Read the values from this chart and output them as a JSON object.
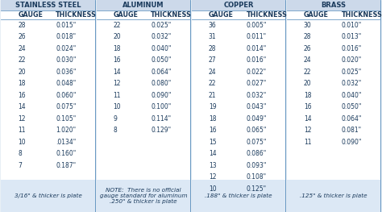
{
  "sections": [
    {
      "title": "STAINLESS STEEL",
      "rows": [
        [
          "28",
          "0.015\""
        ],
        [
          "26",
          "0.018\""
        ],
        [
          "24",
          "0.024\""
        ],
        [
          "22",
          "0.030\""
        ],
        [
          "20",
          "0.036\""
        ],
        [
          "18",
          "0.048\""
        ],
        [
          "16",
          "0.060\""
        ],
        [
          "14",
          "0.075\""
        ],
        [
          "12",
          "0.105\""
        ],
        [
          "11",
          "1.020\""
        ],
        [
          "10",
          ".0134\""
        ],
        [
          "8",
          "0.160\""
        ],
        [
          "7",
          "0.187\""
        ]
      ],
      "footnote": "3/16\" & thicker is plate"
    },
    {
      "title": "ALUMINUM",
      "rows": [
        [
          "22",
          "0.025\""
        ],
        [
          "20",
          "0.032\""
        ],
        [
          "18",
          "0.040\""
        ],
        [
          "16",
          "0.050\""
        ],
        [
          "14",
          "0.064\""
        ],
        [
          "12",
          "0.080\""
        ],
        [
          "11",
          "0.090\""
        ],
        [
          "10",
          "0.100\""
        ],
        [
          "9",
          "0.114\""
        ],
        [
          "8",
          "0.129\""
        ]
      ],
      "footnote": "NOTE:  There is no official\ngauge standard for aluminum\n.250\" & thicker is plate"
    },
    {
      "title": "COPPER",
      "rows": [
        [
          "36",
          "0.005\""
        ],
        [
          "31",
          "0.011\""
        ],
        [
          "28",
          "0.014\""
        ],
        [
          "27",
          "0.016\""
        ],
        [
          "24",
          "0.022\""
        ],
        [
          "22",
          "0.027\""
        ],
        [
          "21",
          "0.032\""
        ],
        [
          "19",
          "0.043\""
        ],
        [
          "18",
          "0.049\""
        ],
        [
          "16",
          "0.065\""
        ],
        [
          "15",
          "0.075\""
        ],
        [
          "14",
          "0.086\""
        ],
        [
          "13",
          "0.093\""
        ],
        [
          "12",
          "0.108\""
        ],
        [
          "10",
          "0.125\""
        ]
      ],
      "footnote": ".188\" & thicker is plate"
    },
    {
      "title": "BRASS",
      "rows": [
        [
          "30",
          "0.010\""
        ],
        [
          "28",
          "0.013\""
        ],
        [
          "26",
          "0.016\""
        ],
        [
          "24",
          "0.020\""
        ],
        [
          "22",
          "0.025\""
        ],
        [
          "20",
          "0.032\""
        ],
        [
          "18",
          "0.040\""
        ],
        [
          "16",
          "0.050\""
        ],
        [
          "14",
          "0.064\""
        ],
        [
          "12",
          "0.081\""
        ],
        [
          "11",
          "0.090\""
        ]
      ],
      "footnote": ".125\" & thicker is plate"
    }
  ],
  "col1_label": "GAUGE",
  "col2_label": "THICKNESS",
  "title_bg": "#ccd9ea",
  "body_bg": "#ffffff",
  "outer_bg": "#dce8f5",
  "border_color": "#6a9ac4",
  "text_color": "#1a3a5c",
  "title_fontsize": 6.0,
  "header_fontsize": 5.8,
  "data_fontsize": 5.5,
  "footnote_fontsize": 5.2,
  "fig_width": 4.74,
  "fig_height": 2.63,
  "dpi": 100
}
